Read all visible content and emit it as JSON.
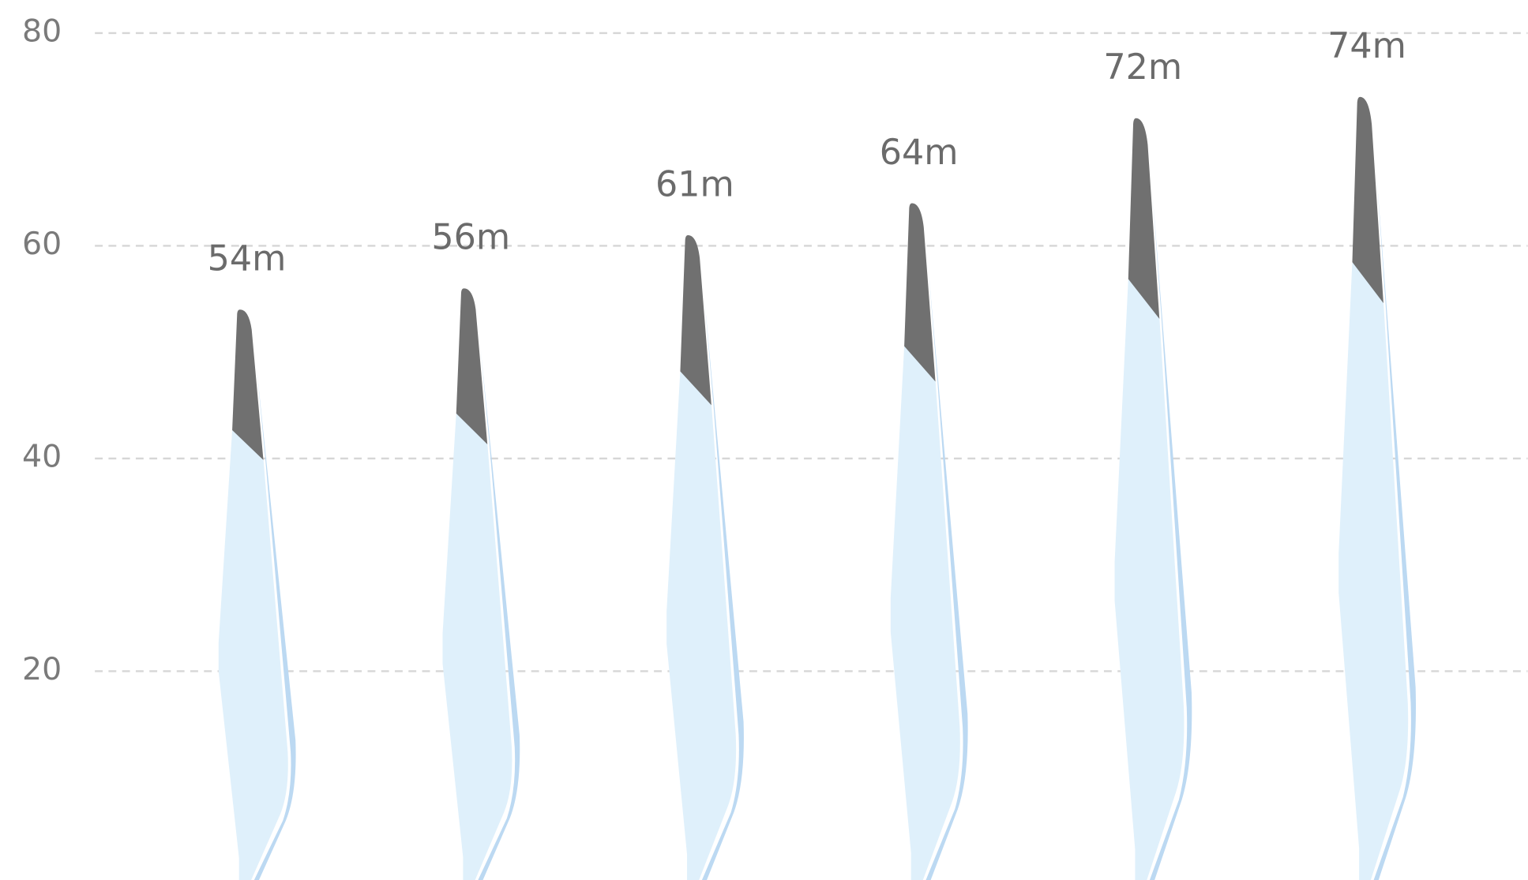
{
  "chart_data": {
    "type": "bar",
    "categories": [
      null,
      null,
      null,
      null,
      null,
      null
    ],
    "values": [
      54,
      56,
      61,
      64,
      72,
      74
    ],
    "value_labels": [
      "54m",
      "56m",
      "61m",
      "64m",
      "72m",
      "74m"
    ],
    "color": "#dff0fb",
    "ylim": [
      0,
      80
    ],
    "yticks": [
      20,
      40,
      60,
      80
    ],
    "grid": true
  }
}
